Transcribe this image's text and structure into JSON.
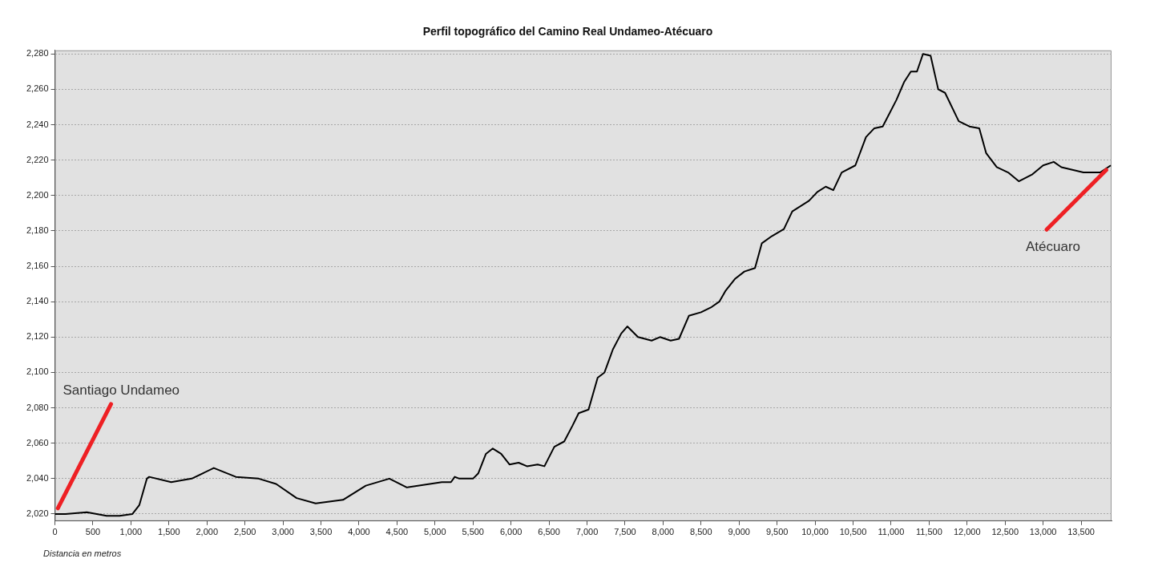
{
  "chart_data": {
    "type": "line",
    "title": "Perfil topográfico del Camino Real Undameo-Atécuaro",
    "xlabel": "Distancia en metros",
    "x": [
      0,
      140,
      420,
      680,
      850,
      1020,
      1110,
      1210,
      1240,
      1530,
      1800,
      2090,
      2380,
      2680,
      2910,
      3180,
      3430,
      3790,
      4090,
      4400,
      4630,
      5090,
      5210,
      5260,
      5320,
      5500,
      5570,
      5670,
      5760,
      5870,
      5980,
      6100,
      6210,
      6350,
      6440,
      6570,
      6700,
      6810,
      6890,
      7020,
      7140,
      7230,
      7340,
      7450,
      7530,
      7670,
      7850,
      7960,
      8100,
      8210,
      8340,
      8500,
      8640,
      8740,
      8820,
      8950,
      9070,
      9210,
      9300,
      9430,
      9590,
      9700,
      9920,
      10030,
      10140,
      10240,
      10350,
      10530,
      10670,
      10780,
      10890,
      11070,
      11170,
      11260,
      11340,
      11420,
      11520,
      11620,
      11710,
      11890,
      12030,
      12160,
      12250,
      12390,
      12540,
      12680,
      12860,
      13000,
      13140,
      13240,
      13530,
      13750,
      13890
    ],
    "series": [
      {
        "color": "#000000",
        "values": [
          2020,
          2020,
          2021,
          2019,
          2019,
          2020,
          2025,
          2040,
          2041,
          2038,
          2040,
          2046,
          2041,
          2040,
          2037,
          2029,
          2026,
          2028,
          2036,
          2040,
          2035,
          2038,
          2038,
          2041,
          2040,
          2040,
          2043,
          2054,
          2057,
          2054,
          2048,
          2049,
          2047,
          2048,
          2047,
          2058,
          2061,
          2070,
          2077,
          2079,
          2097,
          2100,
          2113,
          2122,
          2126,
          2120,
          2118,
          2120,
          2118,
          2119,
          2132,
          2134,
          2137,
          2140,
          2146,
          2153,
          2157,
          2159,
          2173,
          2177,
          2181,
          2191,
          2197,
          2202,
          2205,
          2203,
          2213,
          2217,
          2233,
          2238,
          2239,
          2254,
          2264,
          2270,
          2270,
          2280,
          2279,
          2260,
          2258,
          2242,
          2239,
          2238,
          2224,
          2216,
          2213,
          2208,
          2212,
          2217,
          2219,
          2216,
          2213,
          2213,
          2217
        ]
      }
    ],
    "xlim": [
      0,
      13900
    ],
    "xticks": [
      0,
      500,
      {
        "value": 1000,
        "label": "1,000"
      },
      {
        "value": 1500,
        "label": "1,500"
      },
      {
        "value": 2000,
        "label": "2,000"
      },
      {
        "value": 2500,
        "label": "2,500"
      },
      {
        "value": 3000,
        "label": "3,000"
      },
      {
        "value": 3500,
        "label": "3,500"
      },
      {
        "value": 4000,
        "label": "4,000"
      },
      {
        "value": 4500,
        "label": "4,500"
      },
      {
        "value": 5000,
        "label": "5,000"
      },
      {
        "value": 5500,
        "label": "5,500"
      },
      {
        "value": 6000,
        "label": "6,000"
      },
      {
        "value": 6500,
        "label": "6,500"
      },
      {
        "value": 7000,
        "label": "7,000"
      },
      {
        "value": 7500,
        "label": "7,500"
      },
      {
        "value": 8000,
        "label": "8,000"
      },
      {
        "value": 8500,
        "label": "8,500"
      },
      {
        "value": 9000,
        "label": "9,000"
      },
      {
        "value": 9500,
        "label": "9,500"
      },
      {
        "value": 10000,
        "label": "10,000"
      },
      {
        "value": 10500,
        "label": "10,500"
      },
      {
        "value": 11000,
        "label": "11,000"
      },
      {
        "value": 11500,
        "label": "11,500"
      },
      {
        "value": 12000,
        "label": "12,000"
      },
      {
        "value": 12500,
        "label": "12,500"
      },
      {
        "value": 13000,
        "label": "13,000"
      },
      {
        "value": 13500,
        "label": "13,500"
      }
    ],
    "ylim": [
      2016,
      2282
    ],
    "yticks": [
      {
        "value": 2020,
        "label": "2,020"
      },
      {
        "value": 2040,
        "label": "2,040"
      },
      {
        "value": 2060,
        "label": "2,060"
      },
      {
        "value": 2080,
        "label": "2,080"
      },
      {
        "value": 2100,
        "label": "2,100"
      },
      {
        "value": 2120,
        "label": "2,120"
      },
      {
        "value": 2140,
        "label": "2,140"
      },
      {
        "value": 2160,
        "label": "2,160"
      },
      {
        "value": 2180,
        "label": "2,180"
      },
      {
        "value": 2200,
        "label": "2,200"
      },
      {
        "value": 2220,
        "label": "2,220"
      },
      {
        "value": 2240,
        "label": "2,240"
      },
      {
        "value": 2260,
        "label": "2,260"
      },
      {
        "value": 2280,
        "label": "2,280"
      }
    ],
    "grid": "y",
    "legend": false,
    "marker": "none",
    "line_style": "solid",
    "annotations": [
      {
        "text": "Santiago Undameo",
        "x": 0,
        "y": 2020
      },
      {
        "text": "Atécuaro",
        "x": 13890,
        "y": 2217
      }
    ]
  }
}
